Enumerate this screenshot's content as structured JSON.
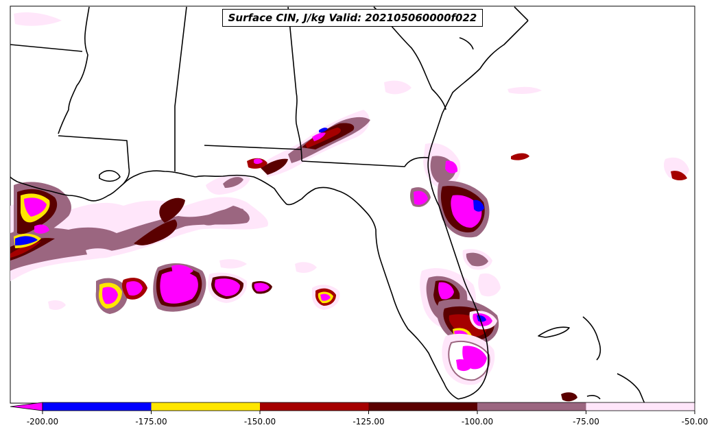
{
  "title": "Surface CIN, J/kg Valid: 202105060000f022",
  "colorbar": {
    "extend": "min",
    "bins": [
      {
        "from": -200.0,
        "to": -175.0,
        "color": "#0000ff"
      },
      {
        "from": -175.0,
        "to": -150.0,
        "color": "#ffe600"
      },
      {
        "from": -150.0,
        "to": -125.0,
        "color": "#a50000"
      },
      {
        "from": -125.0,
        "to": -100.0,
        "color": "#5a0000"
      },
      {
        "from": -100.0,
        "to": -75.0,
        "color": "#9b6680"
      },
      {
        "from": -75.0,
        "to": -50.0,
        "color": "#ffe6fa"
      }
    ],
    "under_color": "#ff00ff",
    "ticks": [
      "-200.00",
      "-175.00",
      "-150.00",
      "-125.00",
      "-100.00",
      "-75.00",
      "-50.00"
    ]
  },
  "colors": {
    "very_strong": "#ff00ff",
    "strong": "#0000ff",
    "moderate_high": "#ffe600",
    "moderate": "#a50000",
    "moderate_low": "#5a0000",
    "weak": "#9b6680",
    "very_weak": "#ffe6fa",
    "coast": "#000000"
  }
}
